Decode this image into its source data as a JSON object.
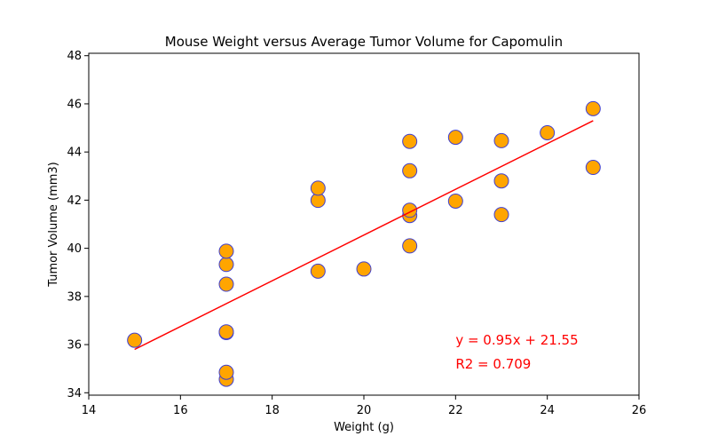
{
  "chart_data": {
    "type": "scatter",
    "title": "Mouse Weight versus Average Tumor Volume for Capomulin",
    "xlabel": "Weight (g)",
    "ylabel": "Tumor Volume (mm3)",
    "xlim": [
      14,
      26
    ],
    "ylim": [
      33.9,
      48.1
    ],
    "xticks": [
      14,
      16,
      18,
      20,
      22,
      24,
      26
    ],
    "yticks": [
      34,
      36,
      38,
      40,
      42,
      44,
      46,
      48
    ],
    "grid": false,
    "points": [
      {
        "x": 15,
        "y": 36.18
      },
      {
        "x": 17,
        "y": 34.56
      },
      {
        "x": 17,
        "y": 34.85
      },
      {
        "x": 17,
        "y": 36.5
      },
      {
        "x": 17,
        "y": 36.53
      },
      {
        "x": 17,
        "y": 38.51
      },
      {
        "x": 17,
        "y": 39.33
      },
      {
        "x": 17,
        "y": 39.88
      },
      {
        "x": 19,
        "y": 39.05
      },
      {
        "x": 19,
        "y": 41.99
      },
      {
        "x": 19,
        "y": 42.5
      },
      {
        "x": 20,
        "y": 39.14
      },
      {
        "x": 21,
        "y": 40.1
      },
      {
        "x": 21,
        "y": 41.36
      },
      {
        "x": 21,
        "y": 41.58
      },
      {
        "x": 21,
        "y": 43.22
      },
      {
        "x": 21,
        "y": 44.44
      },
      {
        "x": 22,
        "y": 41.96
      },
      {
        "x": 22,
        "y": 44.61
      },
      {
        "x": 23,
        "y": 41.4
      },
      {
        "x": 23,
        "y": 42.8
      },
      {
        "x": 23,
        "y": 44.47
      },
      {
        "x": 24,
        "y": 44.8
      },
      {
        "x": 25,
        "y": 43.36
      },
      {
        "x": 25,
        "y": 45.8
      }
    ],
    "regression": {
      "slope": 0.95,
      "intercept": 21.55,
      "x_range": [
        15,
        25
      ],
      "equation_label": "y = 0.95x + 21.55",
      "r2_label": "R2 = 0.709",
      "label_x": 22,
      "label_y_equation": 36.0,
      "label_y_r2": 35.0
    },
    "colors": {
      "marker_fill": "#FFA500",
      "marker_edge": "#4040D0",
      "line": "#FF0000",
      "annotation": "#FF0000"
    }
  }
}
